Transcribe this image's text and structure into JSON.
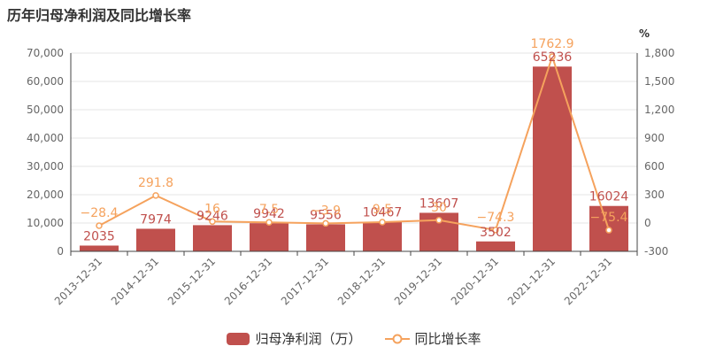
{
  "title": "历年归母净利润及同比增长率",
  "colors": {
    "bar": "#c0504d",
    "line": "#f5a25d",
    "axis": "#666666",
    "grid": "#e6e6e6"
  },
  "chart_data": {
    "type": "bar",
    "categories": [
      "2013-12-31",
      "2014-12-31",
      "2015-12-31",
      "2016-12-31",
      "2017-12-31",
      "2018-12-31",
      "2019-12-31",
      "2020-12-31",
      "2021-12-31",
      "2022-12-31"
    ],
    "series": [
      {
        "name": "归母净利润（万）",
        "type": "bar",
        "axis": "left",
        "values": [
          2035,
          7974,
          9246,
          9942,
          9556,
          10467,
          13607,
          3502,
          65236,
          16024
        ],
        "labels": [
          "2035",
          "7974",
          "9246",
          "9942",
          "9556",
          "10467",
          "13607",
          "3502",
          "65236",
          "16024"
        ]
      },
      {
        "name": "同比增长率",
        "type": "line",
        "axis": "right",
        "values": [
          -28.4,
          291.8,
          16,
          7.5,
          -3.9,
          9.5,
          30,
          -74.3,
          1762.9,
          -75.4
        ],
        "labels": [
          "-28.4",
          "291.8",
          "16",
          "7.5",
          "-3.9",
          "9.5",
          "30",
          "-74.3",
          "1762.9",
          "-75.4"
        ]
      }
    ],
    "y_left": {
      "min": 0,
      "max": 70000,
      "ticks": [
        0,
        10000,
        20000,
        30000,
        40000,
        50000,
        60000,
        70000
      ],
      "tick_labels": [
        "0",
        "10,000",
        "20,000",
        "30,000",
        "40,000",
        "50,000",
        "60,000",
        "70,000"
      ]
    },
    "y_right": {
      "min": -300,
      "max": 1800,
      "unit": "%",
      "ticks": [
        -300,
        0,
        300,
        600,
        900,
        1200,
        1500,
        1800
      ],
      "tick_labels": [
        "-300",
        "0",
        "300",
        "600",
        "900",
        "1,200",
        "1,500",
        "1,800"
      ]
    },
    "grid": true,
    "legend_position": "bottom"
  }
}
